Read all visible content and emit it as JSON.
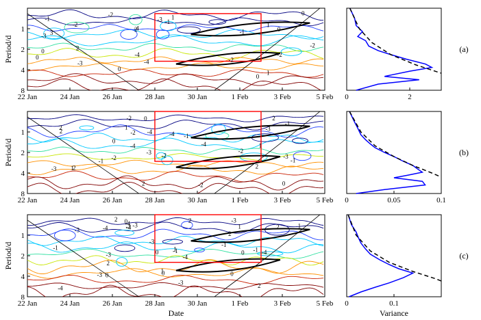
{
  "colors": {
    "contour_levels": [
      "#000080",
      "#1f3fff",
      "#00c8ff",
      "#2fe0a0",
      "#c8e600",
      "#ff9000",
      "#c81e00",
      "#800000"
    ],
    "box": "#ff0000",
    "spectrum": "#0000ff",
    "fit": "#000000"
  },
  "chart_data": [
    {
      "type": "contour",
      "panel": "(a)",
      "ylabel": "Period/d",
      "xlabel": "",
      "x_ticks": [
        "22 Jan",
        "24 Jan",
        "26 Jan",
        "28 Jan",
        "30 Jan",
        "1 Feb",
        "3 Feb",
        "5 Feb"
      ],
      "y_ticks": [
        "1",
        "2",
        "4",
        "8"
      ],
      "ylim": [
        8,
        0.5
      ],
      "contour_labels": [
        "-3",
        "-4",
        "-4",
        "-1",
        "0",
        "-4",
        "-3",
        "-2",
        "-2",
        "-1",
        "0",
        "-2",
        "-3",
        "-2",
        "0",
        "1",
        "-1",
        "0",
        "1",
        "2",
        "3",
        "1",
        "2",
        "0",
        "-2",
        "0"
      ],
      "box": {
        "x": [
          "28 Jan",
          "2 Feb"
        ],
        "y": [
          0.6,
          3
        ]
      }
    },
    {
      "type": "line",
      "panel": "(a)",
      "x_ticks": [
        "0",
        "2"
      ],
      "xlim": [
        0,
        3
      ],
      "ylim": [
        8,
        0.5
      ],
      "series": [
        {
          "x": [
            0.1,
            0.25,
            0.3,
            0.5,
            0.35,
            0.6,
            0.7,
            1.0,
            1.4,
            1.9,
            2.5,
            2.7,
            2.0,
            1.2,
            2.3,
            1.0,
            0.3
          ],
          "y": [
            0.5,
            0.7,
            0.9,
            1.1,
            1.3,
            1.5,
            1.8,
            2.1,
            2.4,
            2.8,
            3.3,
            3.7,
            4.2,
            5.0,
            5.6,
            6.5,
            8.0
          ]
        },
        {
          "x": [
            0.1,
            0.4,
            0.8,
            1.4,
            2.2,
            3.0
          ],
          "y": [
            0.5,
            1.0,
            1.6,
            2.4,
            3.4,
            4.5
          ]
        }
      ],
      "label": "(a)"
    },
    {
      "type": "contour",
      "panel": "(b)",
      "ylabel": "Period/d",
      "xlabel": "",
      "x_ticks": [
        "22 Jan",
        "24 Jan",
        "26 Jan",
        "28 Jan",
        "30 Jan",
        "1 Feb",
        "3 Feb",
        "5 Feb"
      ],
      "y_ticks": [
        "1",
        "2",
        "4",
        "8"
      ],
      "ylim": [
        8,
        0.5
      ],
      "contour_labels": [
        "-4",
        "-3",
        "-4",
        "-3",
        "2",
        "-4",
        "-3",
        "-2",
        "-3",
        "-2",
        "-1",
        "-4",
        "0",
        "1",
        "2",
        "-1",
        "-2",
        "-2",
        "-1",
        "0",
        "2",
        "1",
        "2",
        "2",
        "-2",
        "0",
        "1",
        "-1",
        "2",
        "-2"
      ],
      "box": {
        "x": [
          "28 Jan",
          "2 Feb"
        ],
        "y": [
          0.5,
          2.7
        ]
      }
    },
    {
      "type": "line",
      "panel": "(b)",
      "x_ticks": [
        "0",
        "0.05",
        "0.1"
      ],
      "xlim": [
        0,
        0.1
      ],
      "ylim": [
        8,
        0.5
      ],
      "series": [
        {
          "x": [
            0.003,
            0.008,
            0.012,
            0.015,
            0.02,
            0.025,
            0.03,
            0.04,
            0.05,
            0.06,
            0.07,
            0.075,
            0.08,
            0.065,
            0.05,
            0.08,
            0.083,
            0.04,
            0.01
          ],
          "y": [
            0.5,
            0.7,
            0.9,
            1.1,
            1.3,
            1.5,
            1.7,
            2.0,
            2.3,
            2.7,
            3.1,
            3.5,
            3.9,
            4.3,
            4.7,
            5.3,
            6.0,
            7.0,
            8.0
          ]
        },
        {
          "x": [
            0.003,
            0.015,
            0.03,
            0.05,
            0.07,
            0.09,
            0.1
          ],
          "y": [
            0.5,
            1.0,
            1.6,
            2.3,
            3.1,
            4.0,
            4.6
          ]
        }
      ],
      "label": "(b)"
    },
    {
      "type": "contour",
      "panel": "(c)",
      "ylabel": "Period/d",
      "xlabel": "Date",
      "x_ticks": [
        "22 Jan",
        "24 Jan",
        "26 Jan",
        "28 Jan",
        "30 Jan",
        "1 Feb",
        "3 Feb",
        "5 Feb"
      ],
      "y_ticks": [
        "1",
        "2",
        "4",
        "8"
      ],
      "ylim": [
        8,
        0.5
      ],
      "contour_labels": [
        "-3",
        "-4",
        "-4",
        "-3",
        "-4",
        "1",
        "-3",
        "-3",
        "-4",
        "-2",
        "-3",
        "-4",
        "-3",
        "-1",
        "0",
        "0",
        "2",
        "0",
        "2",
        "1",
        "-3",
        "2",
        "1",
        "0",
        "-1",
        "2",
        "1",
        "0",
        "-1",
        "2",
        "-1",
        "0",
        "-4",
        "2"
      ],
      "box": {
        "x": [
          "28 Jan",
          "2 Feb"
        ],
        "y": [
          0.5,
          2.5
        ]
      }
    },
    {
      "type": "line",
      "panel": "(c)",
      "xlabel": "Variance",
      "x_ticks": [
        "0",
        "0.1"
      ],
      "xlim": [
        0,
        0.2
      ],
      "ylim": [
        8,
        0.5
      ],
      "series": [
        {
          "x": [
            0.003,
            0.01,
            0.02,
            0.025,
            0.03,
            0.04,
            0.05,
            0.07,
            0.09,
            0.11,
            0.14,
            0.12,
            0.09,
            0.06,
            0.03,
            0.005
          ],
          "y": [
            0.5,
            0.7,
            0.9,
            1.1,
            1.3,
            1.6,
            1.9,
            2.3,
            2.7,
            3.1,
            3.6,
            4.2,
            5.0,
            5.8,
            6.8,
            8.0
          ]
        },
        {
          "x": [
            0.003,
            0.02,
            0.05,
            0.09,
            0.14,
            0.19,
            0.2
          ],
          "y": [
            0.5,
            1.0,
            1.7,
            2.5,
            3.4,
            4.4,
            4.7
          ]
        }
      ],
      "label": "(c)"
    }
  ]
}
